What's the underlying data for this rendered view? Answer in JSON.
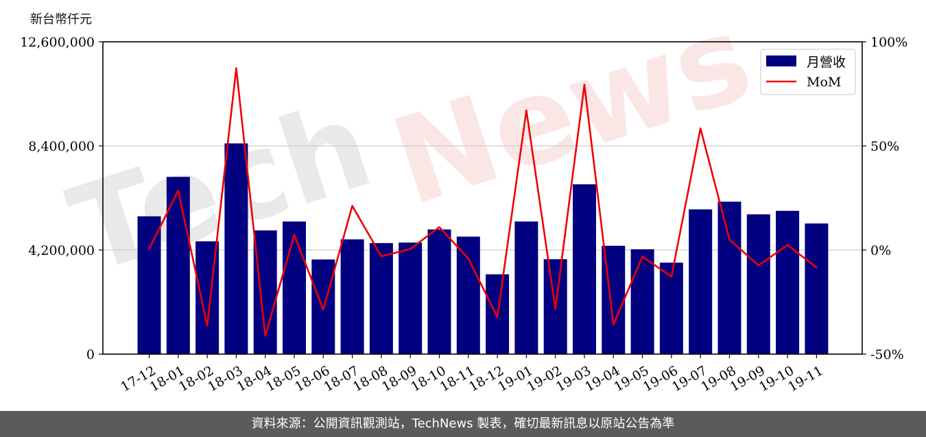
{
  "unit_label": "新台幣仟元",
  "footer_text": "資料來源：公開資訊觀測站，TechNews 製表，確切最新訊息以原站公告為準",
  "watermark": {
    "tech": "Tech",
    "news": "News"
  },
  "colors": {
    "bar": "#000080",
    "line": "#ee0000",
    "grid": "#cccccc",
    "footer_bg": "#5b5b5b"
  },
  "chart_data": {
    "type": "bar+line",
    "categories": [
      "17-12",
      "18-01",
      "18-02",
      "18-03",
      "18-04",
      "18-05",
      "18-06",
      "18-07",
      "18-08",
      "18-09",
      "18-10",
      "18-11",
      "18-12",
      "19-01",
      "19-02",
      "19-03",
      "19-04",
      "19-05",
      "19-06",
      "19-07",
      "19-08",
      "19-09",
      "19-10",
      "19-11"
    ],
    "series": [
      {
        "name": "月營收",
        "type": "bar",
        "axis": "left",
        "values": [
          5560000,
          7150000,
          4550000,
          8500000,
          4990000,
          5350000,
          3820000,
          4630000,
          4480000,
          4500000,
          5030000,
          4740000,
          3220000,
          5350000,
          3830000,
          6850000,
          4370000,
          4230000,
          3690000,
          5840000,
          6150000,
          5640000,
          5780000,
          5270000
        ]
      },
      {
        "name": "MoM",
        "type": "line",
        "axis": "right",
        "values": [
          0.5,
          28.5,
          -36.3,
          87.3,
          -41.2,
          7.3,
          -28.6,
          21.2,
          -3.0,
          0.5,
          11.0,
          -4.1,
          -32.2,
          67.0,
          -28.3,
          79.4,
          -35.8,
          -3.2,
          -12.8,
          58.4,
          5.0,
          -7.4,
          2.4,
          -8.4
        ]
      }
    ],
    "y_left": {
      "ylim": [
        0,
        12600000
      ],
      "ticks": [
        "0",
        "4,200,000",
        "8,400,000",
        "12,600,000"
      ],
      "tick_values": [
        0,
        4200000,
        8400000,
        12600000
      ]
    },
    "y_right": {
      "ylim": [
        -50,
        100
      ],
      "ticks": [
        "-50%",
        "0%",
        "50%",
        "100%"
      ],
      "tick_values": [
        -50,
        0,
        50,
        100
      ]
    },
    "grid": "horizontal",
    "legend": {
      "placement": "top-right",
      "entries": [
        "月營收",
        "MoM"
      ]
    }
  }
}
